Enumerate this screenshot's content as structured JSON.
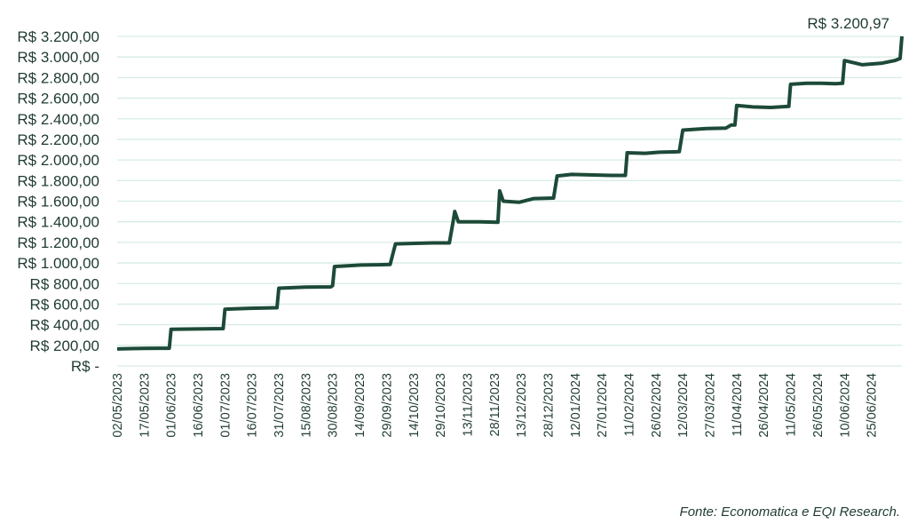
{
  "chart_data": {
    "type": "line",
    "title": "",
    "xlabel": "",
    "ylabel": "",
    "ylim": [
      0,
      3200
    ],
    "y_ticks": [
      {
        "value": 0,
        "label": "R$ -"
      },
      {
        "value": 200,
        "label": "R$ 200,00"
      },
      {
        "value": 400,
        "label": "R$ 400,00"
      },
      {
        "value": 600,
        "label": "R$ 600,00"
      },
      {
        "value": 800,
        "label": "R$ 800,00"
      },
      {
        "value": 1000,
        "label": "R$ 1.000,00"
      },
      {
        "value": 1200,
        "label": "R$ 1.200,00"
      },
      {
        "value": 1400,
        "label": "R$ 1.400,00"
      },
      {
        "value": 1600,
        "label": "R$ 1.600,00"
      },
      {
        "value": 1800,
        "label": "R$ 1.800,00"
      },
      {
        "value": 2000,
        "label": "R$ 2.000,00"
      },
      {
        "value": 2200,
        "label": "R$ 2.200,00"
      },
      {
        "value": 2400,
        "label": "R$ 2.400,00"
      },
      {
        "value": 2600,
        "label": "R$ 2.600,00"
      },
      {
        "value": 2800,
        "label": "R$ 2.800,00"
      },
      {
        "value": 3000,
        "label": "R$ 3.000,00"
      },
      {
        "value": 3200,
        "label": "R$ 3.200,00"
      }
    ],
    "x_range": [
      "2023-05-02",
      "2024-07-12"
    ],
    "x_ticks": [
      "02/05/2023",
      "17/05/2023",
      "01/06/2023",
      "16/06/2023",
      "01/07/2023",
      "16/07/2023",
      "31/07/2023",
      "15/08/2023",
      "30/08/2023",
      "14/09/2023",
      "29/09/2023",
      "14/10/2023",
      "29/10/2023",
      "13/11/2023",
      "28/11/2023",
      "13/12/2023",
      "28/12/2023",
      "12/01/2024",
      "27/01/2024",
      "11/02/2024",
      "26/02/2024",
      "12/03/2024",
      "27/03/2024",
      "11/04/2024",
      "26/04/2024",
      "11/05/2024",
      "26/05/2024",
      "10/06/2024",
      "25/06/2024"
    ],
    "grid": true,
    "line_color": "#1d4a38",
    "grid_color": "#d7ece6",
    "series": [
      {
        "name": "",
        "points": [
          [
            "2023-05-02",
            165
          ],
          [
            "2023-05-10",
            168
          ],
          [
            "2023-05-17",
            170
          ],
          [
            "2023-05-25",
            172
          ],
          [
            "2023-05-31",
            172
          ],
          [
            "2023-06-01",
            355
          ],
          [
            "2023-06-10",
            358
          ],
          [
            "2023-06-20",
            360
          ],
          [
            "2023-06-30",
            362
          ],
          [
            "2023-07-01",
            550
          ],
          [
            "2023-07-15",
            560
          ],
          [
            "2023-07-30",
            565
          ],
          [
            "2023-07-31",
            755
          ],
          [
            "2023-08-15",
            765
          ],
          [
            "2023-08-29",
            768
          ],
          [
            "2023-08-30",
            780
          ],
          [
            "2023-08-31",
            965
          ],
          [
            "2023-09-15",
            980
          ],
          [
            "2023-09-25",
            982
          ],
          [
            "2023-10-01",
            985
          ],
          [
            "2023-10-04",
            1185
          ],
          [
            "2023-10-15",
            1190
          ],
          [
            "2023-10-25",
            1195
          ],
          [
            "2023-11-03",
            1195
          ],
          [
            "2023-11-05",
            1395
          ],
          [
            "2023-11-06",
            1500
          ],
          [
            "2023-11-08",
            1400
          ],
          [
            "2023-11-20",
            1400
          ],
          [
            "2023-11-30",
            1395
          ],
          [
            "2023-12-01",
            1700
          ],
          [
            "2023-12-03",
            1600
          ],
          [
            "2023-12-12",
            1590
          ],
          [
            "2023-12-20",
            1625
          ],
          [
            "2023-12-31",
            1630
          ],
          [
            "2024-01-02",
            1845
          ],
          [
            "2024-01-10",
            1860
          ],
          [
            "2024-01-20",
            1855
          ],
          [
            "2024-02-01",
            1850
          ],
          [
            "2024-02-09",
            1850
          ],
          [
            "2024-02-10",
            2070
          ],
          [
            "2024-02-20",
            2065
          ],
          [
            "2024-02-28",
            2075
          ],
          [
            "2024-03-10",
            2080
          ],
          [
            "2024-03-12",
            2290
          ],
          [
            "2024-03-25",
            2305
          ],
          [
            "2024-04-05",
            2310
          ],
          [
            "2024-04-08",
            2340
          ],
          [
            "2024-04-10",
            2340
          ],
          [
            "2024-04-11",
            2530
          ],
          [
            "2024-04-20",
            2515
          ],
          [
            "2024-04-30",
            2510
          ],
          [
            "2024-05-05",
            2515
          ],
          [
            "2024-05-10",
            2520
          ],
          [
            "2024-05-11",
            2735
          ],
          [
            "2024-05-20",
            2745
          ],
          [
            "2024-05-28",
            2745
          ],
          [
            "2024-06-05",
            2740
          ],
          [
            "2024-06-09",
            2745
          ],
          [
            "2024-06-10",
            2965
          ],
          [
            "2024-06-20",
            2925
          ],
          [
            "2024-07-01",
            2940
          ],
          [
            "2024-07-08",
            2965
          ],
          [
            "2024-07-11",
            2985
          ],
          [
            "2024-07-12",
            3200.97
          ]
        ]
      }
    ],
    "annotation": "R$ 3.200,97",
    "source": "Fonte: Economatica e EQI Research."
  }
}
